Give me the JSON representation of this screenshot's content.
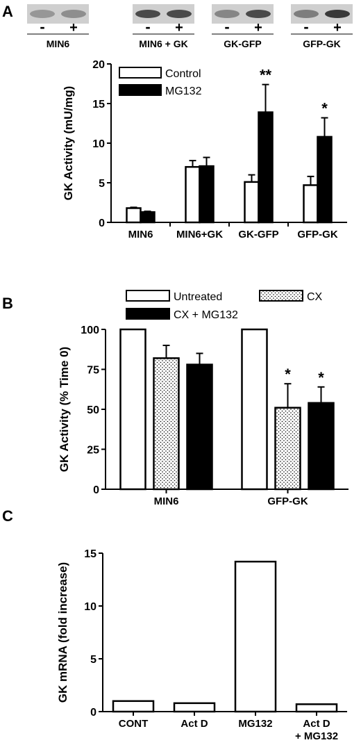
{
  "panels": {
    "a": {
      "letter": "A"
    },
    "b": {
      "letter": "B"
    },
    "c": {
      "letter": "C"
    }
  },
  "blot": {
    "lanes": [
      {
        "label": "MIN6",
        "minus": "-",
        "plus": "+",
        "band_intensity": [
          0.35,
          0.4
        ]
      },
      {
        "label": "MIN6 + GK",
        "minus": "-",
        "plus": "+",
        "band_intensity": [
          0.8,
          0.8
        ]
      },
      {
        "label": "GK-GFP",
        "minus": "-",
        "plus": "+",
        "band_intensity": [
          0.45,
          0.8
        ]
      },
      {
        "label": "GFP-GK",
        "minus": "-",
        "plus": "+",
        "band_intensity": [
          0.5,
          0.9
        ]
      }
    ]
  },
  "chart_data": [
    {
      "panel": "A",
      "type": "bar",
      "ylabel": "GK Activity (mU/mg)",
      "ylim": [
        0,
        20
      ],
      "yticks": [
        "0",
        "5",
        "10",
        "15",
        "20"
      ],
      "categories": [
        "MIN6",
        "MIN6+GK",
        "GK-GFP",
        "GFP-GK"
      ],
      "legend_position": "top-left",
      "series": [
        {
          "name": "Control",
          "fill": "#ffffff",
          "values": [
            1.8,
            7.0,
            5.1,
            4.7
          ],
          "errors": [
            0.1,
            0.8,
            0.9,
            1.1
          ]
        },
        {
          "name": "MG132",
          "fill": "#000000",
          "values": [
            1.3,
            7.1,
            13.9,
            10.8
          ],
          "errors": [
            0.1,
            1.1,
            3.5,
            2.4
          ]
        }
      ],
      "annotations": [
        {
          "series": 1,
          "category": 2,
          "text": "**"
        },
        {
          "series": 1,
          "category": 3,
          "text": "*"
        }
      ]
    },
    {
      "panel": "B",
      "type": "bar",
      "ylabel": "GK Activity (% Time 0)",
      "ylim": [
        0,
        100
      ],
      "yticks": [
        "0",
        "25",
        "50",
        "75",
        "100"
      ],
      "categories": [
        "MIN6",
        "GFP-GK"
      ],
      "legend_position": "top",
      "series": [
        {
          "name": "Untreated",
          "fill": "#ffffff",
          "values": [
            100,
            100
          ],
          "errors": [
            0,
            0
          ]
        },
        {
          "name": "CX",
          "fill": "dots",
          "values": [
            82,
            51
          ],
          "errors": [
            8,
            15
          ]
        },
        {
          "name": "CX + MG132",
          "fill": "#000000",
          "values": [
            78,
            54
          ],
          "errors": [
            7,
            10
          ]
        }
      ],
      "annotations": [
        {
          "series": 1,
          "category": 1,
          "text": "*"
        },
        {
          "series": 2,
          "category": 1,
          "text": "*"
        }
      ]
    },
    {
      "panel": "C",
      "type": "bar",
      "ylabel": "GK mRNA (fold increase)",
      "ylim": [
        0,
        15
      ],
      "yticks": [
        "0",
        "5",
        "10",
        "15"
      ],
      "categories": [
        "CONT",
        "Act D",
        "MG132",
        "Act D\n+ MG132"
      ],
      "series": [
        {
          "fill": "#ffffff",
          "values": [
            1.0,
            0.8,
            14.2,
            0.7
          ]
        }
      ]
    }
  ]
}
